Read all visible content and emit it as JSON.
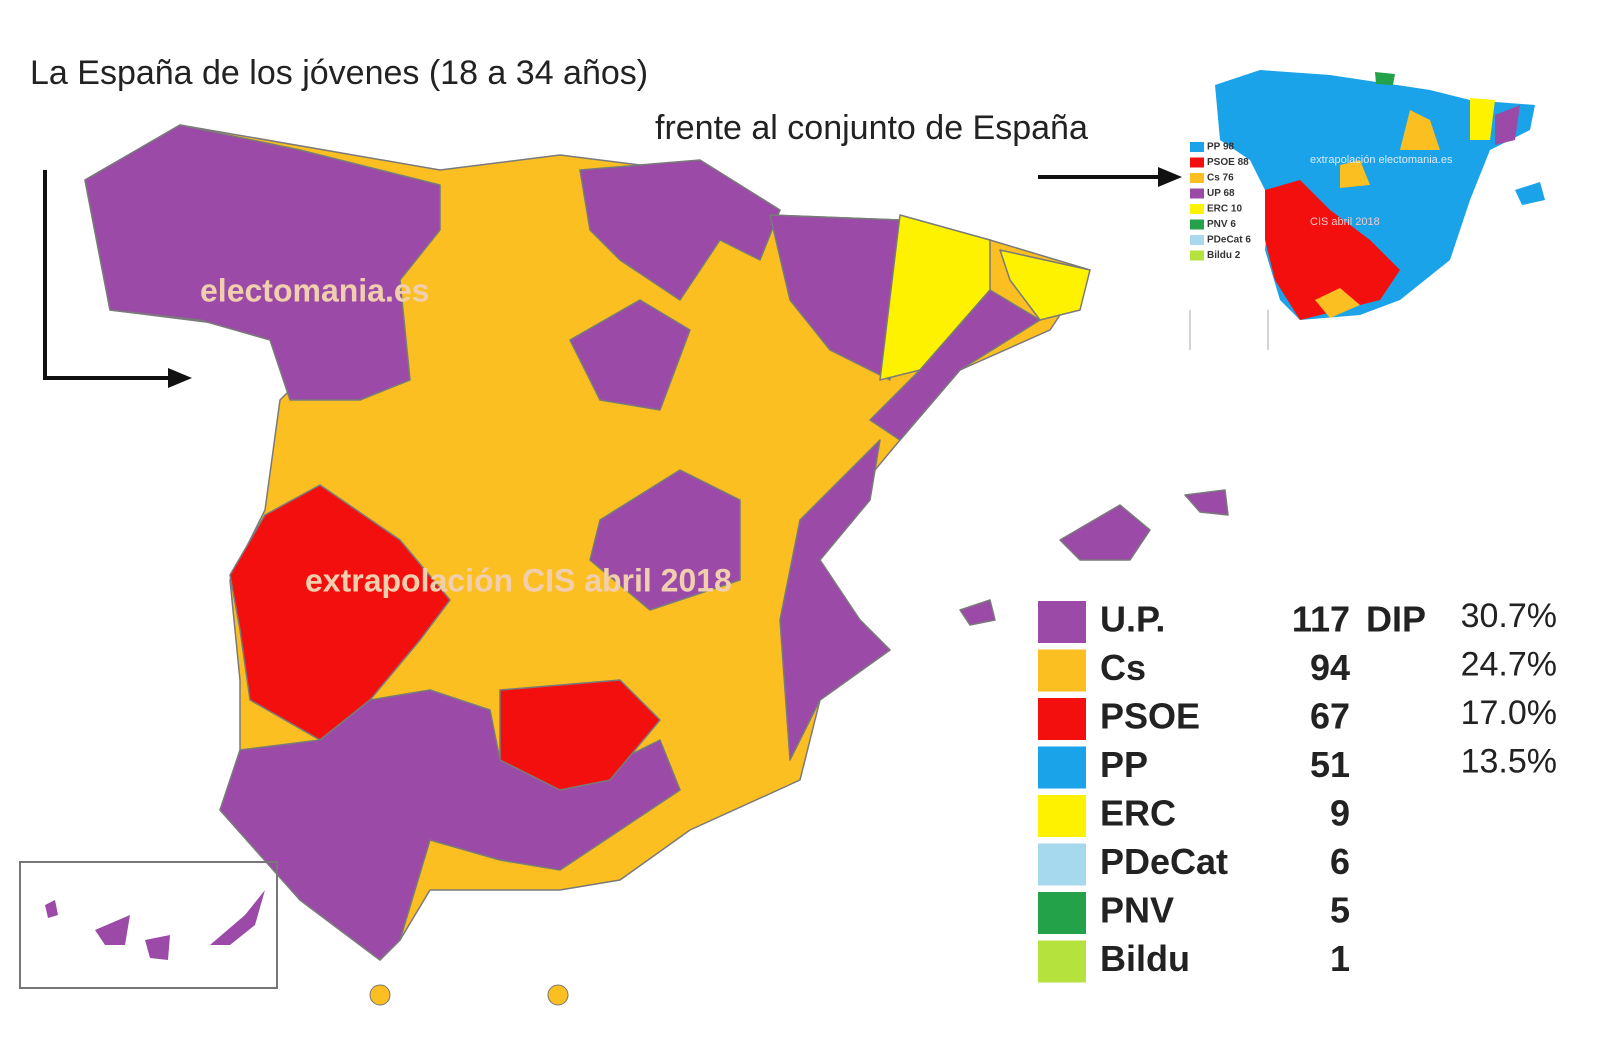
{
  "title": "La España de los jóvenes (18 a 34 años)",
  "subtitle": "frente al conjunto de España",
  "watermarks": [
    "electomania.es",
    "extrapolación CIS abril 2018"
  ],
  "legend": {
    "unit": "DIP",
    "rows": [
      {
        "party": "U.P.",
        "color": "#9b4aa8",
        "seats": 117,
        "share": "30.7%"
      },
      {
        "party": "Cs",
        "color": "#fbbf22",
        "seats": 94,
        "share": "24.7%"
      },
      {
        "party": "PSOE",
        "color": "#f40f0f",
        "seats": 67,
        "share": "17.0%"
      },
      {
        "party": "PP",
        "color": "#1aa3e8",
        "seats": 51,
        "share": "13.5%"
      },
      {
        "party": "ERC",
        "color": "#fff200",
        "seats": 9
      },
      {
        "party": "PDeCat",
        "color": "#a6d8ee",
        "seats": 6
      },
      {
        "party": "PNV",
        "color": "#24a24a",
        "seats": 5
      },
      {
        "party": "Bildu",
        "color": "#b5e23c",
        "seats": 1
      }
    ]
  },
  "inset": {
    "legend": [
      {
        "label": "PP 98",
        "color": "#1aa3e8"
      },
      {
        "label": "PSOE 88",
        "color": "#f40f0f"
      },
      {
        "label": "Cs 76",
        "color": "#fbbf22"
      },
      {
        "label": "UP 68",
        "color": "#9b4aa8"
      },
      {
        "label": "ERC 10",
        "color": "#fff200"
      },
      {
        "label": "PNV 6",
        "color": "#24a24a"
      },
      {
        "label": "PDeCat 6",
        "color": "#a6d8ee"
      },
      {
        "label": "Bildu 2",
        "color": "#b5e23c"
      }
    ],
    "watermarks": [
      "extrapolación electomania.es",
      "CIS abril 2018"
    ]
  }
}
